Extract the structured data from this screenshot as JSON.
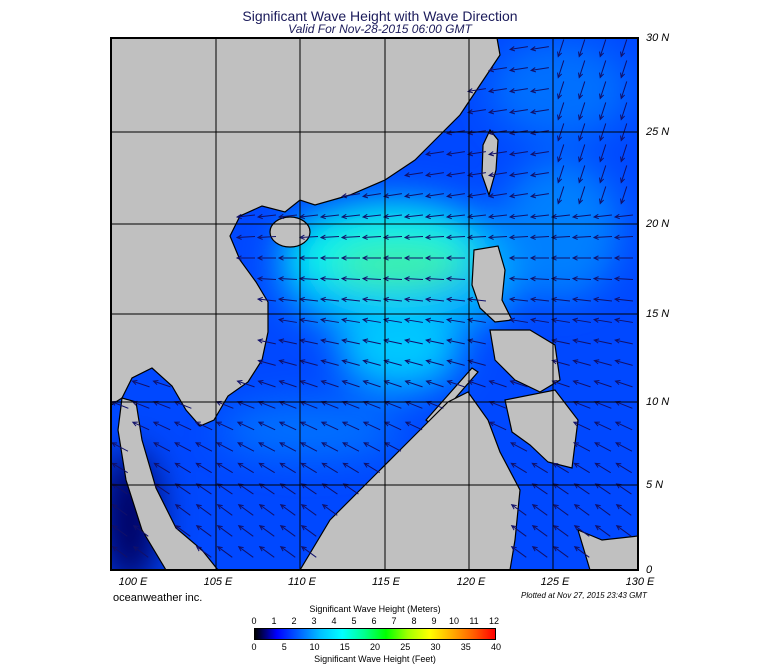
{
  "title": "Significant Wave Height with Wave Direction",
  "subtitle": "Valid For Nov-28-2015 06:00 GMT",
  "map": {
    "lon_labels": [
      "100 E",
      "105 E",
      "110 E",
      "115 E",
      "120 E",
      "125 E",
      "130 E"
    ],
    "lat_labels": [
      "30 N",
      "25 N",
      "20 N",
      "15 N",
      "10 N",
      "5 N",
      "0"
    ],
    "land_color": "#c0c0c0",
    "ocean_colors": {
      "low": "#0040ff",
      "mid": "#00a8ff",
      "high": "#00ffe0",
      "peak": "#40ff90"
    },
    "prevailing_direction": "northeast monsoon, waves travelling toward south-west"
  },
  "credit": "oceanweather inc.",
  "plotted": "Plotted at Nov 27, 2015 23:43 GMT",
  "legend": {
    "meters_title": "Significant Wave Height (Meters)",
    "feet_title": "Significant Wave Height (Feet)",
    "meters_ticks": [
      "0",
      "1",
      "2",
      "3",
      "4",
      "5",
      "6",
      "7",
      "8",
      "9",
      "10",
      "11",
      "12"
    ],
    "feet_ticks": [
      "0",
      "5",
      "10",
      "15",
      "20",
      "25",
      "30",
      "35",
      "40"
    ],
    "colors": [
      "#000000",
      "#0000ff",
      "#0060ff",
      "#00c0ff",
      "#00ffff",
      "#00ff90",
      "#00ff00",
      "#a0ff00",
      "#ffff00",
      "#ffb000",
      "#ff6000",
      "#ff0000"
    ]
  }
}
